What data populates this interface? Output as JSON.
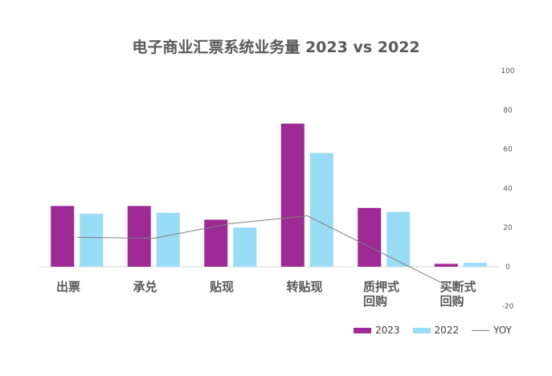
{
  "chart_data": {
    "type": "bar",
    "title": "电子商业汇票系统业务量 2023 vs 2022",
    "categories": [
      [
        "出票"
      ],
      [
        "承兑"
      ],
      [
        "贴现"
      ],
      [
        "转贴现"
      ],
      [
        "质押式",
        "回购"
      ],
      [
        "买断式",
        "回购"
      ]
    ],
    "series": [
      {
        "name": "2023",
        "type": "bar",
        "color": "#9e2a96",
        "values": [
          31,
          31,
          24,
          73,
          30,
          1.5
        ]
      },
      {
        "name": "2022",
        "type": "bar",
        "color": "#98dcf6",
        "values": [
          27,
          27.5,
          20,
          58,
          28,
          2
        ]
      },
      {
        "name": "YOY",
        "type": "line",
        "color": "#7f7f7f",
        "axis": "right",
        "values": [
          15,
          14.5,
          22,
          26,
          6.5,
          -13
        ]
      }
    ],
    "y_right": {
      "ticks": [
        "100",
        "80",
        "60",
        "40",
        "20",
        "0",
        "-20"
      ],
      "range": [
        -20,
        100
      ]
    },
    "legend_position": "bottom-right",
    "grid": false
  }
}
